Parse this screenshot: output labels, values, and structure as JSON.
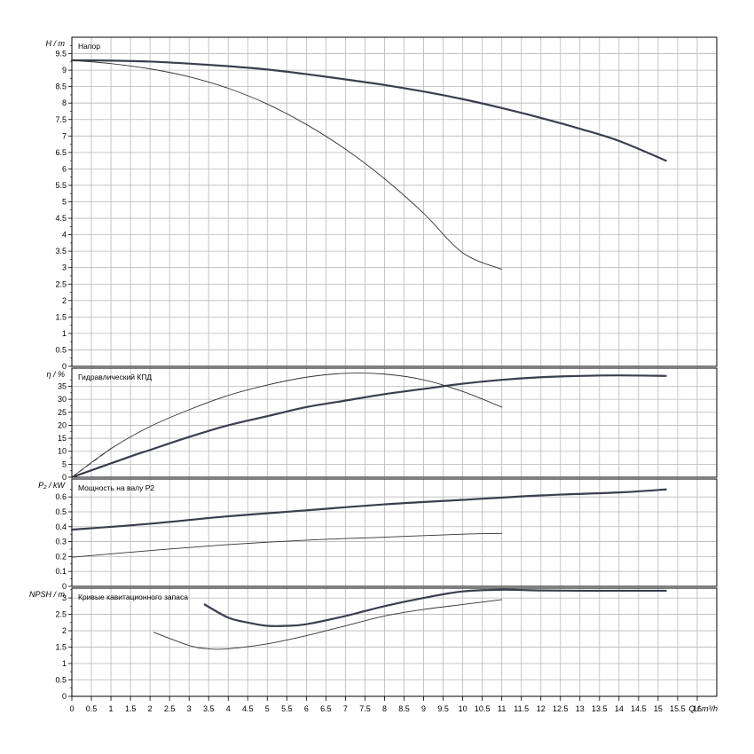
{
  "chart_data": [
    {
      "type": "line",
      "title": "Напор",
      "ylabel": "H / m",
      "xlabel": "Q / m³/h",
      "xlim": [
        0,
        16.5
      ],
      "ylim": [
        0,
        10
      ],
      "grid": true,
      "yticks": [
        "0",
        "0.5",
        "1",
        "1.5",
        "2",
        "2.5",
        "3",
        "3.5",
        "4",
        "4.5",
        "5",
        "5.5",
        "6",
        "6.5",
        "7",
        "7.5",
        "8",
        "8.5",
        "9",
        "9.5"
      ],
      "series": [
        {
          "style": "thick",
          "x": [
            0,
            1,
            2,
            3,
            4,
            5,
            6,
            7,
            8,
            9,
            10,
            11,
            12,
            13,
            14,
            15.2
          ],
          "values": [
            9.3,
            9.29,
            9.26,
            9.2,
            9.12,
            9.02,
            8.88,
            8.72,
            8.55,
            8.35,
            8.12,
            7.85,
            7.55,
            7.22,
            6.85,
            6.25
          ]
        },
        {
          "style": "thin",
          "x": [
            0,
            1,
            2,
            3,
            4,
            5,
            6,
            7,
            8,
            9,
            10,
            11
          ],
          "values": [
            9.3,
            9.2,
            9.04,
            8.8,
            8.45,
            7.97,
            7.35,
            6.6,
            5.7,
            4.65,
            3.45,
            2.95
          ]
        }
      ]
    },
    {
      "type": "line",
      "title": "Гидравлический КПД",
      "ylabel": "η / %",
      "xlim": [
        0,
        16.5
      ],
      "ylim": [
        0,
        42
      ],
      "grid": true,
      "yticks": [
        "0",
        "5",
        "10",
        "15",
        "20",
        "25",
        "30",
        "35"
      ],
      "series": [
        {
          "style": "thick",
          "x": [
            0,
            1.5,
            2,
            3,
            4,
            5,
            6,
            7,
            8,
            9,
            10,
            11,
            12,
            13,
            14,
            15.2
          ],
          "values": [
            0,
            8,
            10.5,
            15.5,
            20,
            23.5,
            27,
            29.5,
            32,
            34,
            36,
            37.5,
            38.5,
            39,
            39.2,
            39
          ]
        },
        {
          "style": "thin",
          "x": [
            0,
            1,
            2,
            3,
            4,
            5,
            6,
            7,
            8,
            9,
            10,
            11
          ],
          "values": [
            0,
            11,
            19.5,
            26,
            31.5,
            35.5,
            38.5,
            40,
            39.7,
            37.5,
            33,
            27
          ]
        }
      ]
    },
    {
      "type": "line",
      "title": "Мощность на валу P2",
      "ylabel": "P₂ / kW",
      "xlim": [
        0,
        16.5
      ],
      "ylim": [
        0,
        0.72
      ],
      "grid": true,
      "yticks": [
        "0",
        "0.1",
        "0.2",
        "0.3",
        "0.4",
        "0.5",
        "0.6"
      ],
      "series": [
        {
          "style": "thick",
          "x": [
            0,
            2,
            4,
            6,
            8,
            10,
            12,
            14,
            15.2
          ],
          "values": [
            0.38,
            0.42,
            0.47,
            0.51,
            0.55,
            0.58,
            0.61,
            0.63,
            0.65
          ]
        },
        {
          "style": "thin",
          "x": [
            0,
            2,
            4,
            6,
            8,
            10,
            11
          ],
          "values": [
            0.195,
            0.24,
            0.28,
            0.31,
            0.33,
            0.35,
            0.355
          ]
        }
      ]
    },
    {
      "type": "line",
      "title": "Кривые кавитационного запаса",
      "ylabel": "NPSH / m",
      "xlabel": "Q / m³/h",
      "xlim": [
        0,
        16.5
      ],
      "ylim": [
        0,
        3.3
      ],
      "grid": true,
      "yticks": [
        "0",
        "0.5",
        "1",
        "1.5",
        "2",
        "2.5",
        "3"
      ],
      "xticks": [
        "0",
        "0.5",
        "1",
        "1.5",
        "2",
        "2.5",
        "3",
        "3.5",
        "4",
        "4.5",
        "5",
        "5.5",
        "6",
        "6.5",
        "7",
        "7.5",
        "8",
        "8.5",
        "9",
        "9.5",
        "10",
        "10.5",
        "11",
        "11.5",
        "12",
        "12.5",
        "13",
        "13.5",
        "14",
        "14.5",
        "15",
        "15.5",
        "16"
      ],
      "series": [
        {
          "style": "thick",
          "x": [
            3.4,
            4,
            4.5,
            5,
            5.5,
            6,
            7,
            8,
            9,
            10,
            11,
            12,
            13,
            14,
            15.2
          ],
          "values": [
            2.8,
            2.4,
            2.25,
            2.15,
            2.15,
            2.2,
            2.45,
            2.75,
            3.0,
            3.2,
            3.25,
            3.23,
            3.22,
            3.22,
            3.22
          ]
        },
        {
          "style": "thin",
          "x": [
            2.1,
            3,
            3.5,
            4,
            5,
            6,
            7,
            8,
            9,
            10,
            11
          ],
          "values": [
            1.95,
            1.55,
            1.45,
            1.45,
            1.6,
            1.85,
            2.15,
            2.45,
            2.65,
            2.8,
            2.95
          ]
        }
      ]
    }
  ],
  "page": {
    "x_axis_label": "Q / m³/h",
    "panel_titles": [
      "Напор",
      "Гидравлический КПД",
      "Мощность на валу P2",
      "Кривые кавитационного запаса"
    ],
    "y_axis_labels": [
      "H / m",
      "η / %",
      "P₂ / kW",
      "NPSH / m"
    ],
    "colors": {
      "grid": "#b9b9b9",
      "frame": "#000000",
      "thick_line": "#3a3f4e",
      "thin_line": "#333333",
      "background": "#ffffff"
    }
  }
}
